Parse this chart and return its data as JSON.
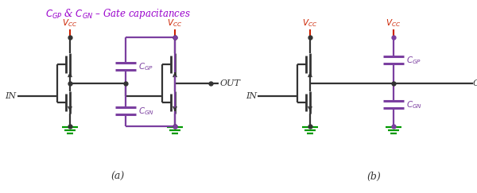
{
  "title": "$C_{GP}$ & $C_{GN}$ – Gate capacitances",
  "title_color": "#9900CC",
  "dark_color": "#333333",
  "red_color": "#CC2200",
  "green_color": "#009900",
  "purple_color": "#7B3FA0",
  "label_a": "(a)",
  "label_b": "(b)",
  "label_in": "IN",
  "label_out": "OUT",
  "label_vcc": "$V_{CC}$",
  "label_cgp": "$C_{GP}$",
  "label_cgn": "$C_{GN}$",
  "lw_main": 1.6,
  "lw_cap": 2.2,
  "lw_vcc": 1.5
}
